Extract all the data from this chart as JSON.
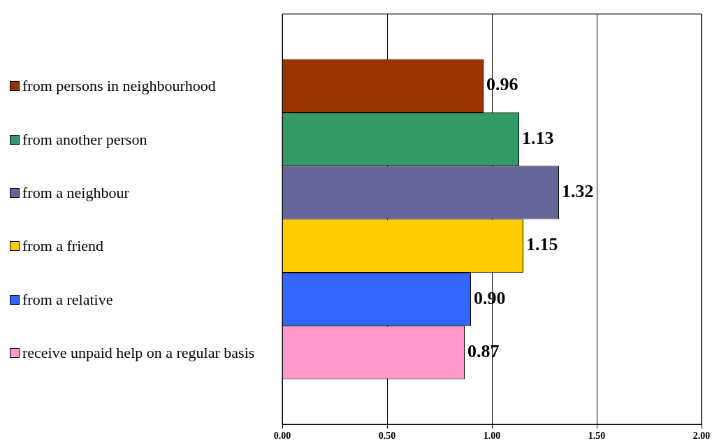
{
  "chart_data": {
    "type": "bar",
    "orientation": "horizontal",
    "categories": [
      null
    ],
    "series": [
      {
        "name": "from persons in neighbourhood",
        "color": "#993300",
        "values": [
          0.96
        ],
        "value_labels": [
          "0.96"
        ]
      },
      {
        "name": "from another person",
        "color": "#339966",
        "values": [
          1.13
        ],
        "value_labels": [
          "1.13"
        ]
      },
      {
        "name": "from a neighbour",
        "color": "#666699",
        "values": [
          1.32
        ],
        "value_labels": [
          "1.32"
        ]
      },
      {
        "name": "from a friend",
        "color": "#ffcc00",
        "values": [
          1.15
        ],
        "value_labels": [
          "1.15"
        ]
      },
      {
        "name": "from a relative",
        "color": "#3366ff",
        "values": [
          0.9
        ],
        "value_labels": [
          "0.90"
        ]
      },
      {
        "name": "receive unpaid help on a regular basis",
        "color": "#ff99cc",
        "values": [
          0.87
        ],
        "value_labels": [
          "0.87"
        ]
      }
    ],
    "xlim": [
      0,
      2
    ],
    "xticks": [
      {
        "value": 0,
        "label": "0.00"
      },
      {
        "value": 0.5,
        "label": "0.50"
      },
      {
        "value": 1,
        "label": "1.00"
      },
      {
        "value": 1.5,
        "label": "1.50"
      },
      {
        "value": 2,
        "label": "2.00"
      }
    ],
    "grid": "x",
    "legend": "left"
  }
}
